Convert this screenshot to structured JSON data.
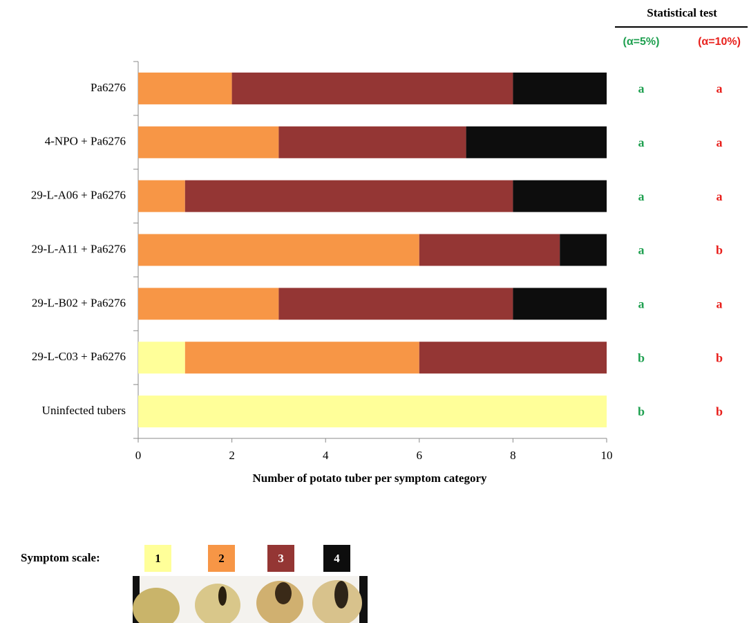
{
  "chart_data": {
    "type": "bar",
    "orientation": "horizontal",
    "stacked": true,
    "categories": [
      "Pa6276",
      "4-NPO + Pa6276",
      "29-L-A06 + Pa6276",
      "29-L-A11 + Pa6276",
      "29-L-B02 + Pa6276",
      "29-L-C03 + Pa6276",
      "Uninfected tubers"
    ],
    "series": [
      {
        "name": "1",
        "color": "#ffff99",
        "values": [
          0,
          0,
          0,
          0,
          0,
          1,
          10
        ]
      },
      {
        "name": "2",
        "color": "#f79646",
        "values": [
          2,
          3,
          1,
          6,
          3,
          5,
          0
        ]
      },
      {
        "name": "3",
        "color": "#943634",
        "values": [
          6,
          4,
          7,
          3,
          5,
          4,
          0
        ]
      },
      {
        "name": "4",
        "color": "#0d0d0d",
        "values": [
          2,
          3,
          2,
          1,
          2,
          0,
          0
        ]
      }
    ],
    "xlabel": "Number of potato tuber per symptom category",
    "xlim": [
      0,
      10
    ],
    "xticks": [
      0,
      2,
      4,
      6,
      8,
      10
    ],
    "grid": false,
    "legend_title": "Symptom scale:",
    "stats": {
      "title": "Statistical test",
      "columns": [
        {
          "label": "(α=5%)",
          "color": "#1fa050",
          "letters": [
            "a",
            "a",
            "a",
            "a",
            "a",
            "b",
            "b"
          ]
        },
        {
          "label": "(α=10%)",
          "color": "#e8201c",
          "letters": [
            "a",
            "a",
            "a",
            "b",
            "a",
            "b",
            "b"
          ]
        }
      ]
    }
  }
}
